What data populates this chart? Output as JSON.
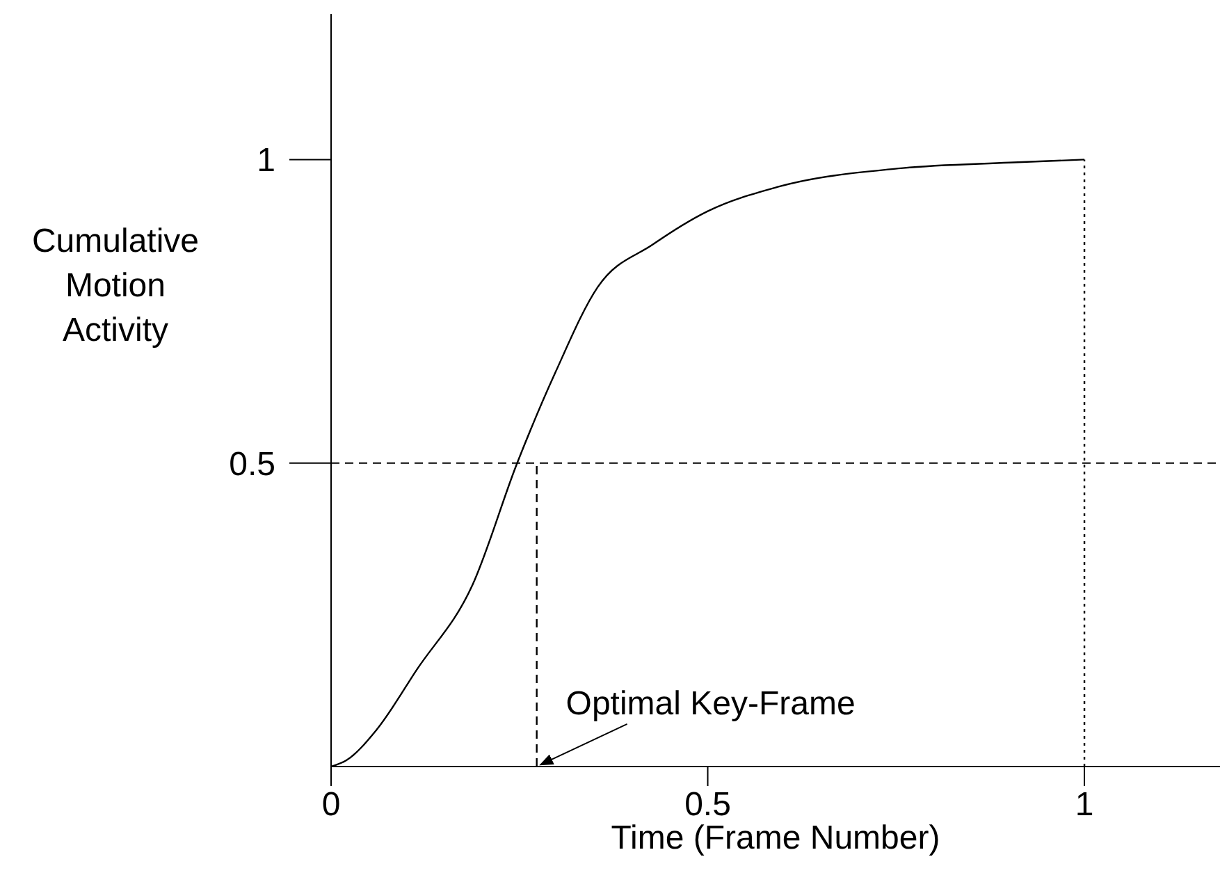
{
  "chart_data": {
    "type": "line",
    "xlabel": "Time (Frame Number)",
    "ylabel": "Cumulative Motion Activity",
    "xlim": [
      0,
      1.18
    ],
    "xticks": [
      0,
      0.5,
      1
    ],
    "ylim": [
      0,
      1.24
    ],
    "yticks": [
      0.5,
      1
    ],
    "marker": "none",
    "series": [
      {
        "color": "#000000",
        "line_style": "solid",
        "x": [
          0,
          0.02,
          0.06,
          0.114,
          0.188,
          0.247,
          0.298,
          0.354,
          0.427,
          0.5,
          0.593,
          0.759,
          0.9,
          1
        ],
        "values": [
          0,
          0.01,
          0.06,
          0.16,
          0.3,
          0.5,
          0.65,
          0.79,
          0.86,
          0.915,
          0.955,
          0.986,
          0.995,
          1
        ]
      },
      {
        "color": "#000000",
        "line_style": "dashed",
        "x": [
          0.273,
          0.273
        ],
        "values": [
          0,
          0.5
        ]
      },
      {
        "color": "#000000",
        "line_style": "dotted",
        "x": [
          1,
          1
        ],
        "values": [
          0,
          1
        ]
      }
    ],
    "ref_lines": [
      {
        "axis": "y",
        "value": 0.5,
        "color": "#000000",
        "line_style": "dashed"
      }
    ],
    "annotations": [
      {
        "text": "Optimal Key-Frame",
        "x": 0.273,
        "y": 0
      }
    ]
  }
}
